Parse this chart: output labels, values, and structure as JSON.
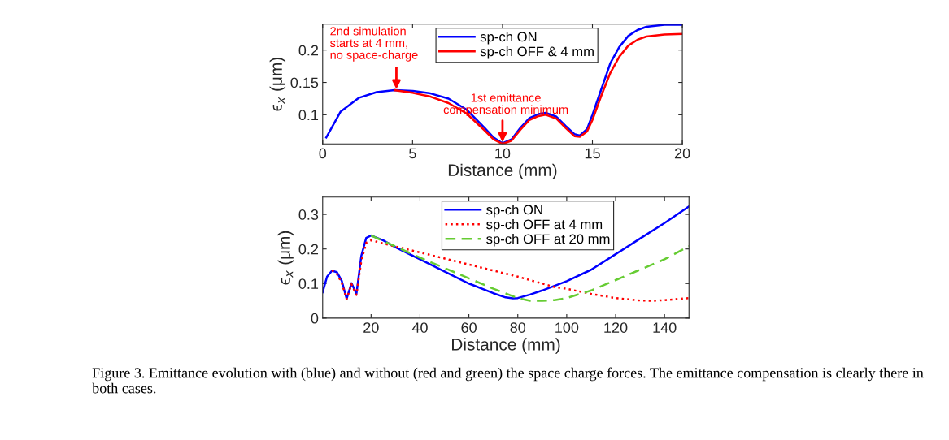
{
  "chart_data": [
    {
      "type": "line",
      "xlabel": "Distance (mm)",
      "ylabel": "ϵ$_{x}$ (μm)",
      "xlim": [
        0,
        20
      ],
      "ylim": [
        0.055,
        0.24
      ],
      "xticks": [
        0,
        5,
        10,
        15,
        20
      ],
      "yticks": [
        0.1,
        0.15,
        0.2
      ],
      "grid": false,
      "legend": "top",
      "line_style": "solid",
      "series": [
        {
          "name": "sp-ch ON",
          "color": "#0000ff",
          "x": [
            0.2,
            0.5,
            1,
            2,
            3,
            4,
            5,
            6,
            7,
            8,
            9,
            9.5,
            10,
            10.5,
            11,
            11.5,
            12,
            12.4,
            13,
            13.5,
            14,
            14.3,
            14.7,
            15,
            15.5,
            16,
            16.5,
            17,
            17.5,
            18,
            19,
            20
          ],
          "values": [
            0.065,
            0.08,
            0.105,
            0.126,
            0.135,
            0.138,
            0.137,
            0.133,
            0.125,
            0.108,
            0.08,
            0.065,
            0.056,
            0.062,
            0.08,
            0.095,
            0.101,
            0.103,
            0.097,
            0.083,
            0.07,
            0.068,
            0.078,
            0.1,
            0.14,
            0.18,
            0.205,
            0.222,
            0.231,
            0.236,
            0.239,
            0.239
          ]
        },
        {
          "name": "sp-ch OFF & 4 mm",
          "color": "#ff0000",
          "x": [
            4,
            5,
            6,
            7,
            8,
            9,
            9.5,
            10,
            10.5,
            11,
            11.5,
            12,
            12.4,
            13,
            13.5,
            14,
            14.3,
            14.7,
            15,
            15.5,
            16,
            16.5,
            17,
            17.5,
            18,
            19,
            20
          ],
          "values": [
            0.138,
            0.134,
            0.128,
            0.118,
            0.102,
            0.076,
            0.062,
            0.055,
            0.06,
            0.077,
            0.092,
            0.098,
            0.1,
            0.094,
            0.08,
            0.067,
            0.066,
            0.074,
            0.092,
            0.13,
            0.165,
            0.19,
            0.207,
            0.216,
            0.221,
            0.224,
            0.225
          ]
        }
      ],
      "annotations": [
        {
          "text": "2nd simulation\nstarts at 4 mm,\nno space-charge",
          "x": 4.1,
          "y": 0.138
        },
        {
          "text": "1st emittance\ncompensation minimum",
          "x": 10,
          "y": 0.056
        }
      ]
    },
    {
      "type": "line",
      "xlabel": "Distance (mm)",
      "ylabel": "ϵ$_{x}$ (μm)",
      "xlim": [
        0.2,
        150
      ],
      "ylim": [
        0,
        0.35
      ],
      "xticks": [
        20,
        40,
        60,
        80,
        100,
        120,
        140
      ],
      "yticks": [
        0,
        0.1,
        0.2,
        0.3
      ],
      "grid": false,
      "legend": "top",
      "series": [
        {
          "name": "sp-ch ON",
          "color": "#0000ff",
          "line_style": "solid",
          "x": [
            0.2,
            2,
            4,
            6,
            8,
            10,
            12,
            14,
            16,
            18,
            20,
            25,
            30,
            40,
            50,
            60,
            70,
            75,
            78,
            80,
            85,
            90,
            100,
            110,
            120,
            130,
            140,
            150
          ],
          "values": [
            0.075,
            0.12,
            0.137,
            0.133,
            0.108,
            0.056,
            0.101,
            0.07,
            0.18,
            0.232,
            0.239,
            0.225,
            0.205,
            0.17,
            0.135,
            0.1,
            0.072,
            0.06,
            0.057,
            0.058,
            0.068,
            0.08,
            0.107,
            0.14,
            0.185,
            0.23,
            0.275,
            0.323
          ]
        },
        {
          "name": "sp-ch OFF at 4 mm",
          "color": "#ff0000",
          "line_style": "dotted",
          "x": [
            4,
            6,
            8,
            10,
            12,
            14,
            16,
            18,
            20,
            30,
            40,
            60,
            80,
            95,
            100,
            110,
            120,
            130,
            135,
            140,
            150
          ],
          "values": [
            0.138,
            0.128,
            0.102,
            0.055,
            0.098,
            0.067,
            0.165,
            0.218,
            0.225,
            0.207,
            0.19,
            0.155,
            0.12,
            0.09,
            0.085,
            0.07,
            0.058,
            0.051,
            0.05,
            0.052,
            0.058
          ]
        },
        {
          "name": "sp-ch OFF at 20 mm",
          "color": "#66cc33",
          "line_style": "dashed",
          "x": [
            20,
            30,
            40,
            60,
            70,
            80,
            85,
            90,
            95,
            100,
            110,
            120,
            130,
            140,
            150
          ],
          "values": [
            0.239,
            0.207,
            0.175,
            0.115,
            0.085,
            0.058,
            0.05,
            0.05,
            0.052,
            0.058,
            0.08,
            0.11,
            0.14,
            0.17,
            0.208
          ]
        }
      ],
      "annotations": [
        "Figure 3. Emittance evolution with (blue) and without (red and green) the space charge forces. The emittance compensation is clearly there in both cases."
      ]
    }
  ]
}
